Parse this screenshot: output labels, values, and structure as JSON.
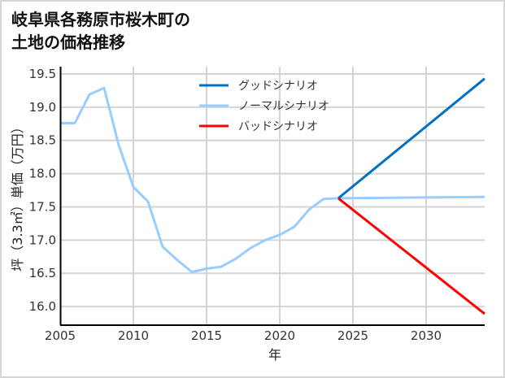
{
  "title_line1": "岐阜県各務原市桜木町の",
  "title_line2": "土地の価格推移",
  "chart_data": {
    "type": "line",
    "title": "岐阜県各務原市桜木町の土地の価格推移",
    "xlabel": "年",
    "ylabel": "坪（3.3㎡）単価（万円）",
    "xlim": [
      2005,
      2034
    ],
    "ylim": [
      15.72,
      19.61
    ],
    "x_ticks": [
      2005,
      2010,
      2015,
      2020,
      2025,
      2030
    ],
    "y_ticks": [
      16.0,
      16.5,
      17.0,
      17.5,
      18.0,
      18.5,
      19.0,
      19.5
    ],
    "grid": true,
    "legend_position": "upper center",
    "series": [
      {
        "name": "グッドシナリオ",
        "color": "#0070c0",
        "x": [
          2024,
          2034
        ],
        "values": [
          17.63,
          19.43
        ]
      },
      {
        "name": "ノーマルシナリオ",
        "color": "#99ccff",
        "x": [
          2005,
          2006,
          2007,
          2008,
          2009,
          2010,
          2011,
          2012,
          2013,
          2014,
          2015,
          2016,
          2017,
          2018,
          2019,
          2020,
          2021,
          2022,
          2023,
          2024,
          2034
        ],
        "values": [
          18.76,
          18.76,
          19.19,
          19.29,
          18.43,
          17.8,
          17.58,
          16.9,
          16.7,
          16.52,
          16.57,
          16.6,
          16.72,
          16.88,
          17.0,
          17.08,
          17.2,
          17.46,
          17.62,
          17.63,
          17.65
        ]
      },
      {
        "name": "バッドシナリオ",
        "color": "#ff0000",
        "x": [
          2024,
          2034
        ],
        "values": [
          17.63,
          15.89
        ]
      }
    ]
  },
  "legend": {
    "items": [
      {
        "label": "グッドシナリオ",
        "color": "#0070c0"
      },
      {
        "label": "ノーマルシナリオ",
        "color": "#99ccff"
      },
      {
        "label": "バッドシナリオ",
        "color": "#ff0000"
      }
    ]
  },
  "x_tick_labels": [
    "2005",
    "2010",
    "2015",
    "2020",
    "2025",
    "2030"
  ],
  "y_tick_labels": [
    "16.0",
    "16.5",
    "17.0",
    "17.5",
    "18.0",
    "18.5",
    "19.0",
    "19.5"
  ]
}
